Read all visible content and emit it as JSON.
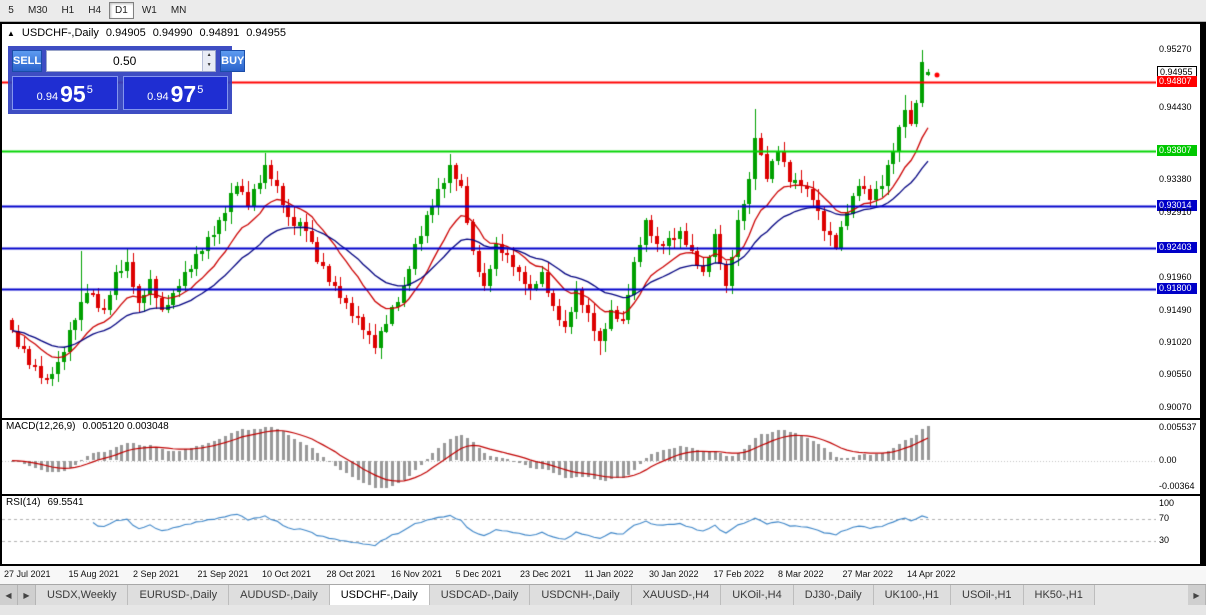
{
  "toolbar": {
    "timeframes": [
      {
        "label": "5",
        "active": false
      },
      {
        "label": "M30",
        "active": false
      },
      {
        "label": "H1",
        "active": false
      },
      {
        "label": "H4",
        "active": false
      },
      {
        "label": "D1",
        "active": true
      },
      {
        "label": "W1",
        "active": false
      },
      {
        "label": "MN",
        "active": false
      }
    ]
  },
  "chart_header": {
    "icon": "▲",
    "symbol": "USDCHF-,Daily",
    "open": "0.94905",
    "high": "0.94990",
    "low": "0.94891",
    "close": "0.94955"
  },
  "trade_panel": {
    "sell_label": "SELL",
    "buy_label": "BUY",
    "volume": "0.50",
    "spinner_up": "▲",
    "spinner_down": "▼",
    "sell_price": {
      "prefix": "0.94",
      "big": "95",
      "sup": "5"
    },
    "buy_price": {
      "prefix": "0.94",
      "big": "97",
      "sup": "5"
    }
  },
  "price_axis": {
    "labels": [
      {
        "text": "0.95270",
        "style": "plain"
      },
      {
        "text": "0.94955",
        "style": "boxed"
      },
      {
        "text": "0.94807",
        "style": "red"
      },
      {
        "text": "0.94430",
        "style": "plain"
      },
      {
        "text": "0.93807",
        "style": "green"
      },
      {
        "text": "0.93380",
        "style": "plain"
      },
      {
        "text": "0.93014",
        "style": "blue"
      },
      {
        "text": "0.92910",
        "style": "plain"
      },
      {
        "text": "0.92403",
        "style": "blue"
      },
      {
        "text": "0.91960",
        "style": "plain"
      },
      {
        "text": "0.91800",
        "style": "blue"
      },
      {
        "text": "0.91490",
        "style": "plain"
      },
      {
        "text": "0.91020",
        "style": "plain"
      },
      {
        "text": "0.90550",
        "style": "plain"
      },
      {
        "text": "0.90070",
        "style": "plain"
      }
    ]
  },
  "macd": {
    "label": "MACD(12,26,9)",
    "values": "0.005120 0.003048",
    "axis": {
      "max": "0.005537",
      "zero": "0.00",
      "min": "-0.00364"
    }
  },
  "rsi": {
    "label": "RSI(14)",
    "value": "69.5541",
    "axis": {
      "top": "100",
      "upper": "70",
      "lower": "30"
    }
  },
  "date_axis": {
    "labels": [
      "27 Jul 2021",
      "15 Aug 2021",
      "2 Sep 2021",
      "21 Sep 2021",
      "10 Oct 2021",
      "28 Oct 2021",
      "16 Nov 2021",
      "5 Dec 2021",
      "23 Dec 2021",
      "11 Jan 2022",
      "30 Jan 2022",
      "17 Feb 2022",
      "8 Mar 2022",
      "27 Mar 2022",
      "14 Apr 2022"
    ]
  },
  "tabs": {
    "scroll_left": "◀",
    "scroll_right": "▶",
    "active_index": 3,
    "items": [
      {
        "label": "USDX,Weekly"
      },
      {
        "label": "EURUSD-,Daily"
      },
      {
        "label": "AUDUSD-,Daily"
      },
      {
        "label": "USDCHF-,Daily"
      },
      {
        "label": "USDCAD-,Daily"
      },
      {
        "label": "USDCNH-,Daily"
      },
      {
        "label": "XAUUSD-,H4"
      },
      {
        "label": "UKOil-,H4"
      },
      {
        "label": "DJ30-,Daily"
      },
      {
        "label": "UK100-,H1"
      },
      {
        "label": "USOil-,H1"
      },
      {
        "label": "HK50-,H1"
      }
    ]
  },
  "chart_data": {
    "type": "candlestick",
    "symbol": "USDCHF-",
    "timeframe": "Daily",
    "y_range": [
      0.8993,
      0.9565
    ],
    "first_open": 0.9135,
    "closes": [
      0.912,
      0.9097,
      0.9093,
      0.907,
      0.9069,
      0.9051,
      0.905,
      0.9057,
      0.9075,
      0.9089,
      0.9121,
      0.9135,
      0.9161,
      0.9175,
      0.9173,
      0.9152,
      0.915,
      0.9172,
      0.9205,
      0.9207,
      0.922,
      0.9184,
      0.916,
      0.9172,
      0.9195,
      0.9167,
      0.915,
      0.9157,
      0.9175,
      0.9184,
      0.9205,
      0.9209,
      0.9231,
      0.9235,
      0.9256,
      0.9259,
      0.928,
      0.9291,
      0.9319,
      0.933,
      0.9321,
      0.93,
      0.9326,
      0.9334,
      0.936,
      0.9339,
      0.933,
      0.9302,
      0.9285,
      0.9272,
      0.9278,
      0.9265,
      0.9249,
      0.922,
      0.9214,
      0.9191,
      0.9185,
      0.9167,
      0.916,
      0.9141,
      0.9139,
      0.912,
      0.9114,
      0.9095,
      0.9119,
      0.913,
      0.9154,
      0.9161,
      0.9185,
      0.9209,
      0.9245,
      0.9257,
      0.9288,
      0.93,
      0.9326,
      0.9334,
      0.936,
      0.9339,
      0.933,
      0.9277,
      0.9235,
      0.9204,
      0.9185,
      0.9209,
      0.9245,
      0.9232,
      0.923,
      0.9212,
      0.9205,
      0.9187,
      0.918,
      0.9187,
      0.9205,
      0.9174,
      0.9155,
      0.9134,
      0.9125,
      0.9147,
      0.918,
      0.9157,
      0.9145,
      0.9119,
      0.9105,
      0.9122,
      0.915,
      0.9137,
      0.9135,
      0.9172,
      0.922,
      0.9244,
      0.928,
      0.9257,
      0.9245,
      0.9244,
      0.9255,
      0.9254,
      0.9265,
      0.9244,
      0.9235,
      0.9214,
      0.9205,
      0.9227,
      0.926,
      0.9217,
      0.9185,
      0.9227,
      0.928,
      0.9304,
      0.934,
      0.94,
      0.9376,
      0.934,
      0.9366,
      0.938,
      0.9364,
      0.9335,
      0.9339,
      0.933,
      0.9326,
      0.931,
      0.9294,
      0.9265,
      0.9259,
      0.924,
      0.9271,
      0.929,
      0.9316,
      0.933,
      0.9326,
      0.931,
      0.9326,
      0.933,
      0.9361,
      0.938,
      0.9416,
      0.944,
      0.942,
      0.945,
      0.951,
      0.94955
    ],
    "wick_overrides": {
      "6": {
        "l": 0.9042
      },
      "12": {
        "h": 0.9236
      },
      "20": {
        "h": 0.9238
      },
      "44": {
        "h": 0.9377
      },
      "63": {
        "l": 0.9086
      },
      "76": {
        "h": 0.9376
      },
      "102": {
        "l": 0.9084
      },
      "129": {
        "h": 0.9442
      },
      "155": {
        "h": 0.9462
      },
      "158": {
        "h": 0.9527
      },
      "159": {
        "o": 0.94905,
        "h": 0.9499,
        "l": 0.94891
      }
    },
    "levels": [
      {
        "value": 0.94807,
        "color": "#ff0000"
      },
      {
        "value": 0.93807,
        "color": "#00d400"
      },
      {
        "value": 0.93014,
        "color": "#0000cc"
      },
      {
        "value": 0.92403,
        "color": "#0000cc"
      },
      {
        "value": 0.918,
        "color": "#0000cc"
      }
    ],
    "overlays": [
      {
        "name": "ma-fast",
        "type": "ema",
        "period": 12,
        "color": "#cc0000"
      },
      {
        "name": "ma-slow",
        "type": "ema",
        "period": 26,
        "color": "#000080"
      }
    ],
    "indicators": [
      {
        "name": "MACD",
        "params": [
          12,
          26,
          9
        ],
        "display": "0.005120 0.003048"
      },
      {
        "name": "RSI",
        "params": [
          14
        ],
        "display": "69.5541"
      }
    ],
    "colors": {
      "up": "#00a000",
      "down": "#dd0000",
      "macd_hist": "#999999",
      "macd_signal": "#c00000",
      "rsi_line": "#3e86c8"
    }
  }
}
